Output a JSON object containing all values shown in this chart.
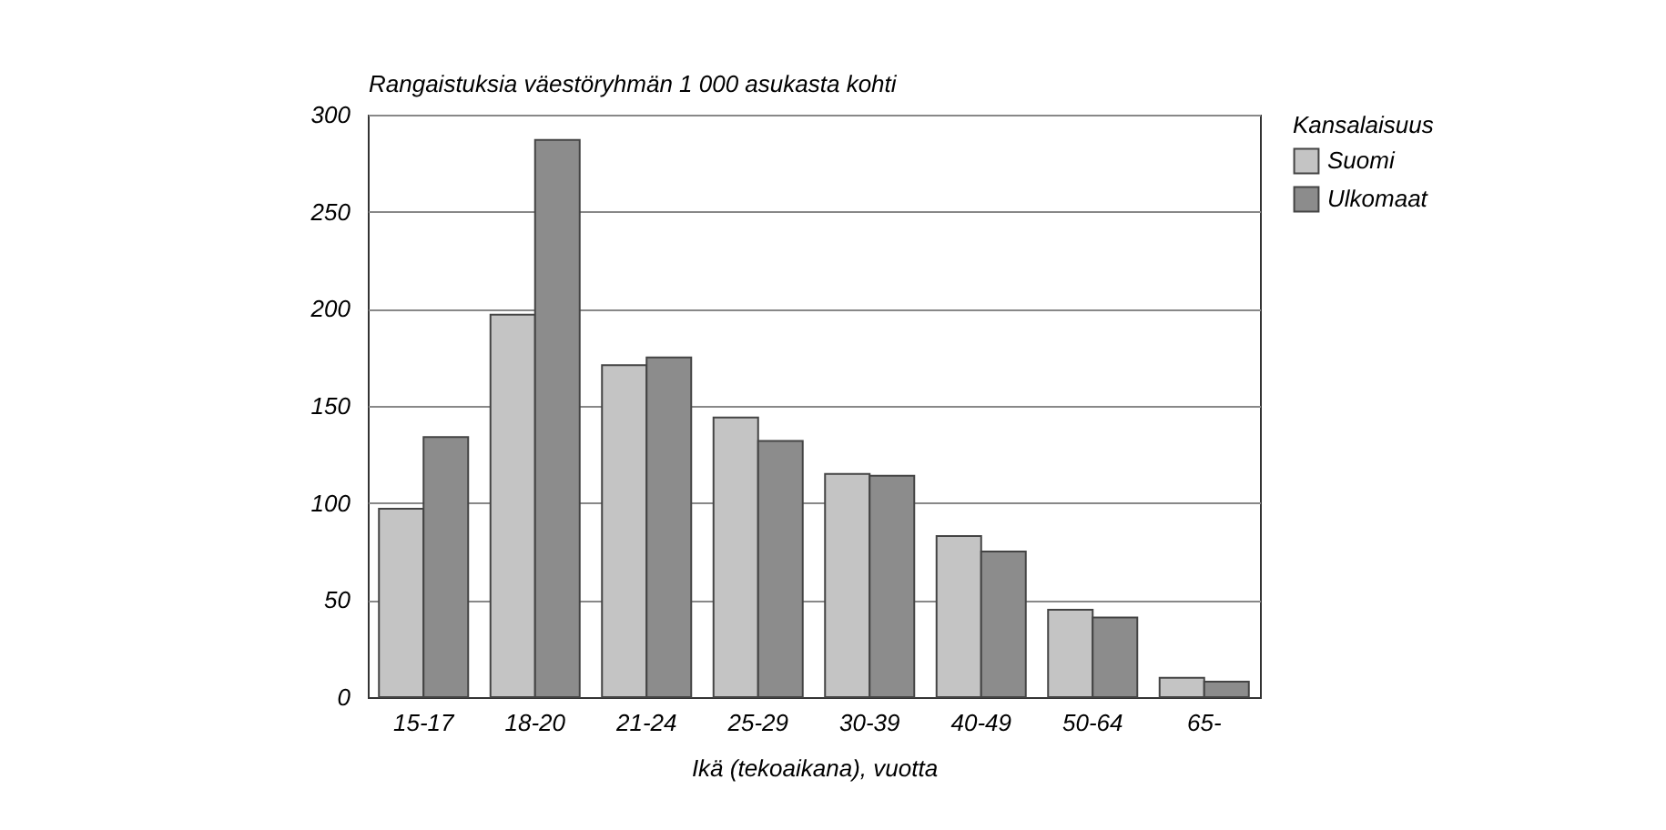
{
  "chart_data": {
    "type": "bar",
    "ylabel": "Rangaistuksia väestöryhmän 1 000 asukasta kohti",
    "xlabel": "Ikä (tekoaikana), vuotta",
    "legend_title": "Kansalaisuus",
    "categories": [
      "15-17",
      "18-20",
      "21-24",
      "25-29",
      "30-39",
      "40-49",
      "50-64",
      "65-"
    ],
    "series": [
      {
        "name": "Suomi",
        "color": "#c4c4c4",
        "values": [
          97,
          197,
          171,
          144,
          115,
          83,
          45,
          10
        ]
      },
      {
        "name": "Ulkomaat",
        "color": "#8c8c8c",
        "values": [
          134,
          287,
          175,
          132,
          114,
          75,
          41,
          8
        ]
      }
    ],
    "ylim": [
      0,
      300
    ],
    "yticks": [
      0,
      50,
      100,
      150,
      200,
      250,
      300
    ],
    "grid": "y",
    "legend": "right"
  }
}
